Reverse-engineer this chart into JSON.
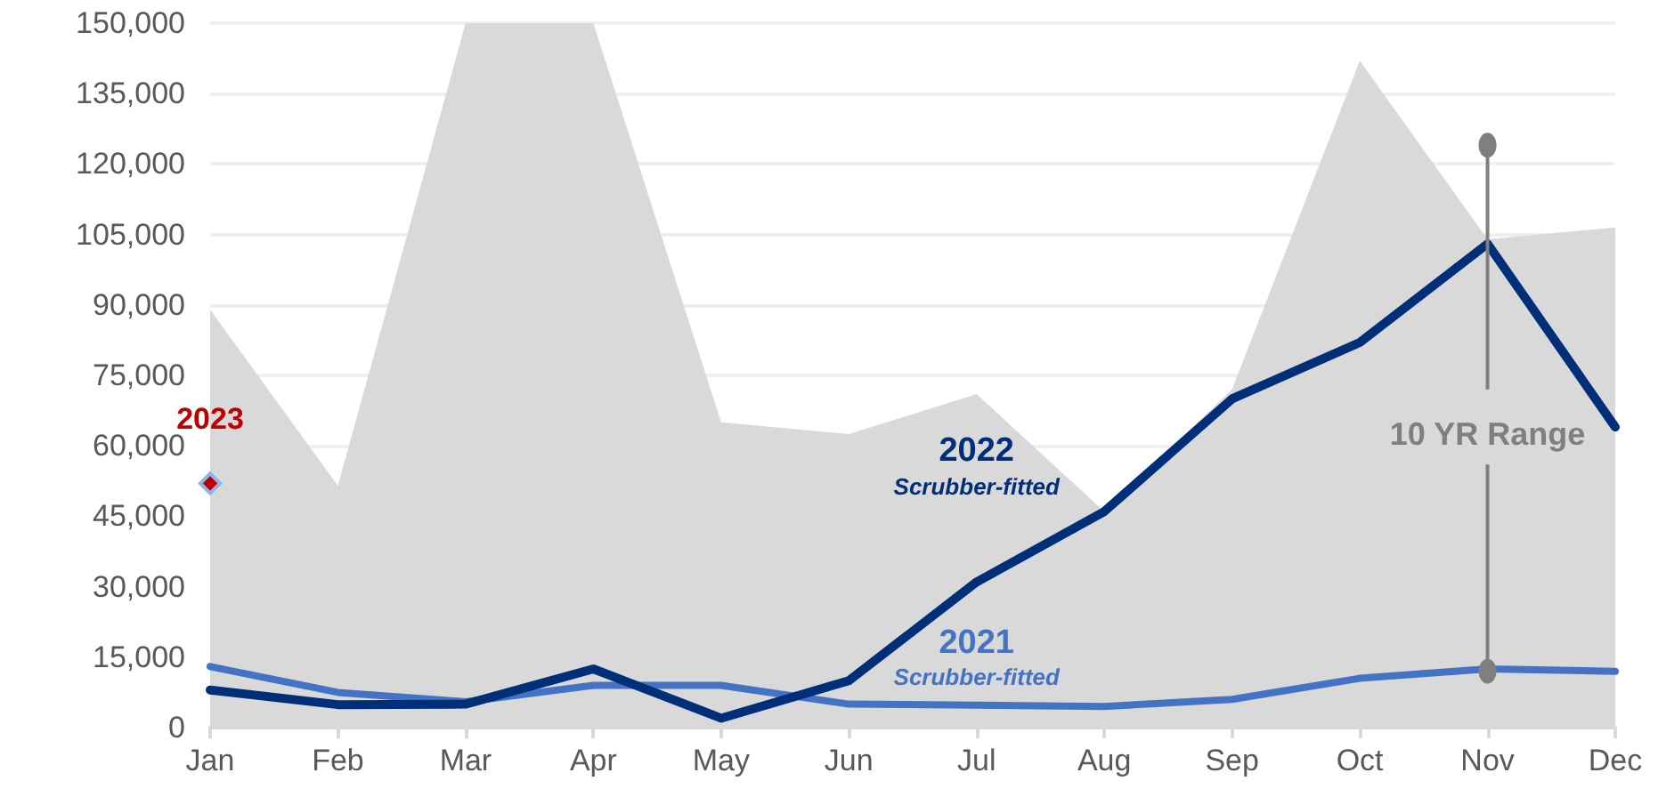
{
  "chart_data": {
    "type": "line",
    "categories": [
      "Jan",
      "Feb",
      "Mar",
      "Apr",
      "May",
      "Jun",
      "Jul",
      "Aug",
      "Sep",
      "Oct",
      "Nov",
      "Dec"
    ],
    "series": [
      {
        "name": "10 YR Range",
        "type": "area",
        "color": "#d9d9d9",
        "values": [
          89000,
          51500,
          150000,
          150000,
          65000,
          62500,
          71000,
          46000,
          72000,
          142000,
          104000,
          106500
        ]
      },
      {
        "name": "2021",
        "color": "#4472c4",
        "values": [
          13000,
          7500,
          5500,
          9000,
          9000,
          5000,
          4800,
          4500,
          6000,
          10500,
          12500,
          12000
        ]
      },
      {
        "name": "2022",
        "color": "#002f7a",
        "values": [
          8000,
          4900,
          5000,
          12500,
          2000,
          10000,
          31000,
          46000,
          70000,
          82000,
          103000,
          64000
        ]
      },
      {
        "name": "2023",
        "color": "#c00000",
        "marker": "diamond",
        "values": [
          52000,
          null,
          null,
          null,
          null,
          null,
          null,
          null,
          null,
          null,
          null,
          null
        ]
      }
    ],
    "annotations": [
      "Scrubber-fitted",
      "Scrubber-fitted"
    ],
    "ylim": [
      0,
      150000
    ],
    "yticks": [
      {
        "value": 0,
        "label": "0"
      },
      {
        "value": 15000,
        "label": "15,000"
      },
      {
        "value": 30000,
        "label": "30,000"
      },
      {
        "value": 45000,
        "label": "45,000"
      },
      {
        "value": 60000,
        "label": "60,000"
      },
      {
        "value": 75000,
        "label": "75,000"
      },
      {
        "value": 90000,
        "label": "90,000"
      },
      {
        "value": 105000,
        "label": "105,000"
      },
      {
        "value": 120000,
        "label": "120,000"
      },
      {
        "value": 135000,
        "label": "135,000"
      },
      {
        "value": 150000,
        "label": "150,000"
      }
    ],
    "grid": "y",
    "legend": false,
    "marker": "none"
  }
}
